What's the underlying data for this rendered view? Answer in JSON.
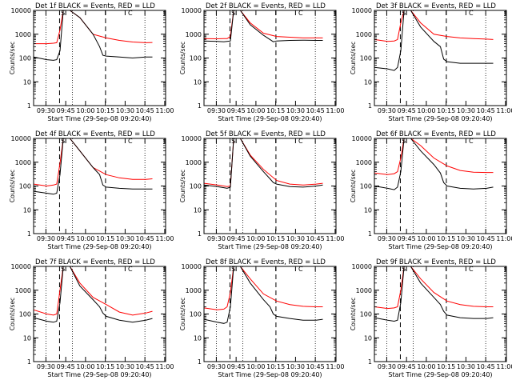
{
  "chart_data": [
    {
      "type": "line",
      "title": "Det 1f BLACK = Events, RED = LLD",
      "xlabel": "Start Time (29-Sep-08 09:20:40)",
      "ylabel": "Counts/sec",
      "xticks": [
        "09:30",
        "09:45",
        "10:00",
        "10:15",
        "10:30",
        "10:45",
        "11:00"
      ],
      "yticks": [
        "1",
        "10",
        "100",
        "1000",
        "10000"
      ],
      "xlim": [
        600,
        6000
      ],
      "ylim": [
        1,
        10000
      ],
      "log_y": true,
      "markers": [
        "S",
        "C"
      ],
      "series": [
        {
          "color": "#ff0000",
          "x": [
            600,
            1200,
            1500,
            1650,
            1800,
            1950,
            2250,
            2700,
            3300,
            3900,
            4500,
            5100,
            5700,
            6000
          ],
          "y": [
            400,
            400,
            420,
            440,
            1500,
            10000,
            10000,
            5000,
            1000,
            700,
            550,
            470,
            440,
            450
          ]
        },
        {
          "color": "#000000",
          "x": [
            600,
            1200,
            1500,
            1650,
            1800,
            1950,
            2250,
            2700,
            3300,
            3600,
            3750,
            3900,
            4500,
            5100,
            5700,
            6000
          ],
          "y": [
            110,
            85,
            80,
            85,
            200,
            10000,
            10000,
            5000,
            1000,
            300,
            130,
            120,
            110,
            100,
            110,
            110
          ]
        }
      ]
    },
    {
      "type": "line",
      "title": "Det 2f BLACK = Events, RED = LLD",
      "xlabel": "Start Time (29-Sep-08 09:20:40)",
      "ylabel": "Counts/sec",
      "xticks": [
        "09:30",
        "09:45",
        "10:00",
        "10:15",
        "10:30",
        "10:45",
        "11:00"
      ],
      "yticks": [
        "1",
        "10",
        "100",
        "1000",
        "10000"
      ],
      "xlim": [
        600,
        6000
      ],
      "ylim": [
        1,
        10000
      ],
      "log_y": true,
      "markers": [
        "S",
        "C"
      ],
      "series": [
        {
          "color": "#ff0000",
          "x": [
            600,
            1200,
            1500,
            1650,
            1800,
            1950,
            2250,
            2700,
            3300,
            3900,
            4500,
            5100,
            5700,
            6000
          ],
          "y": [
            650,
            640,
            650,
            650,
            800,
            10000,
            10000,
            3000,
            1100,
            800,
            750,
            700,
            700,
            700
          ]
        },
        {
          "color": "#000000",
          "x": [
            600,
            1200,
            1500,
            1650,
            1800,
            1950,
            2250,
            2700,
            3300,
            3600,
            3750,
            3900,
            4500,
            5100,
            5700,
            6000
          ],
          "y": [
            520,
            500,
            480,
            500,
            520,
            10000,
            10000,
            2500,
            900,
            600,
            480,
            520,
            550,
            560,
            550,
            550
          ]
        }
      ]
    },
    {
      "type": "line",
      "title": "Det 3f BLACK = Events, RED = LLD",
      "xlabel": "Start Time (29-Sep-08 09:20:40)",
      "ylabel": "Counts/sec",
      "xticks": [
        "09:30",
        "09:45",
        "10:00",
        "10:15",
        "10:30",
        "10:45",
        "11:00"
      ],
      "yticks": [
        "1",
        "10",
        "100",
        "1000",
        "10000"
      ],
      "xlim": [
        600,
        6000
      ],
      "ylim": [
        1,
        10000
      ],
      "log_y": true,
      "markers": [
        "S",
        "C"
      ],
      "series": [
        {
          "color": "#ff0000",
          "x": [
            600,
            1200,
            1500,
            1650,
            1800,
            1950,
            2250,
            2700,
            3300,
            3900,
            4500,
            5100,
            5700,
            6000
          ],
          "y": [
            600,
            500,
            520,
            600,
            3000,
            10000,
            10000,
            3000,
            1000,
            800,
            700,
            650,
            620,
            600
          ]
        },
        {
          "color": "#000000",
          "x": [
            600,
            1200,
            1500,
            1650,
            1800,
            1950,
            2250,
            2700,
            3300,
            3600,
            3750,
            3900,
            4500,
            5100,
            5700,
            6000
          ],
          "y": [
            40,
            35,
            30,
            40,
            200,
            10000,
            10000,
            2000,
            500,
            300,
            90,
            70,
            60,
            60,
            60,
            60
          ]
        }
      ]
    },
    {
      "type": "line",
      "title": "Det 4f BLACK = Events, RED = LLD",
      "xlabel": "Start Time (29-Sep-08 09:20:40)",
      "ylabel": "Counts/sec",
      "xticks": [
        "09:30",
        "09:45",
        "10:00",
        "10:15",
        "10:30",
        "10:45",
        "11:00"
      ],
      "yticks": [
        "1",
        "10",
        "100",
        "1000",
        "10000"
      ],
      "xlim": [
        600,
        6000
      ],
      "ylim": [
        1,
        10000
      ],
      "log_y": true,
      "markers": [
        "S",
        "C"
      ],
      "series": [
        {
          "color": "#ff0000",
          "x": [
            600,
            1200,
            1500,
            1650,
            1800,
            1950,
            2250,
            2700,
            3300,
            3900,
            4500,
            5100,
            5700,
            6000
          ],
          "y": [
            120,
            100,
            110,
            120,
            900,
            10000,
            10000,
            3000,
            600,
            300,
            220,
            190,
            190,
            200
          ]
        },
        {
          "color": "#000000",
          "x": [
            600,
            1200,
            1500,
            1650,
            1800,
            1950,
            2250,
            2700,
            3300,
            3600,
            3750,
            3900,
            4500,
            5100,
            5700,
            6000
          ],
          "y": [
            60,
            50,
            45,
            50,
            300,
            10000,
            10000,
            3000,
            600,
            300,
            110,
            90,
            80,
            75,
            75,
            75
          ]
        }
      ]
    },
    {
      "type": "line",
      "title": "Det 5f BLACK = Events, RED = LLD",
      "xlabel": "Start Time (29-Sep-08 09:20:40)",
      "ylabel": "Counts/sec",
      "xticks": [
        "09:30",
        "09:45",
        "10:00",
        "10:15",
        "10:30",
        "10:45",
        "11:00"
      ],
      "yticks": [
        "1",
        "10",
        "100",
        "1000",
        "10000"
      ],
      "xlim": [
        600,
        6000
      ],
      "ylim": [
        1,
        10000
      ],
      "log_y": true,
      "markers": [
        "S",
        "C"
      ],
      "series": [
        {
          "color": "#ff0000",
          "x": [
            600,
            1200,
            1500,
            1650,
            1800,
            1950,
            2250,
            2700,
            3300,
            3900,
            4500,
            5100,
            5700,
            6000
          ],
          "y": [
            130,
            110,
            100,
            95,
            100,
            10000,
            10000,
            2000,
            500,
            170,
            120,
            110,
            120,
            130
          ]
        },
        {
          "color": "#000000",
          "x": [
            600,
            1200,
            1500,
            1650,
            1800,
            1950,
            2250,
            2700,
            3300,
            3600,
            3750,
            3900,
            4500,
            5100,
            5700,
            6000
          ],
          "y": [
            110,
            95,
            85,
            80,
            90,
            10000,
            10000,
            1800,
            400,
            200,
            140,
            120,
            95,
            90,
            100,
            110
          ]
        }
      ]
    },
    {
      "type": "line",
      "title": "Det 6f BLACK = Events, RED = LLD",
      "xlabel": "Start Time (29-Sep-08 09:20:40)",
      "ylabel": "Counts/sec",
      "xticks": [
        "09:30",
        "09:45",
        "10:00",
        "10:15",
        "10:30",
        "10:45",
        "11:00"
      ],
      "yticks": [
        "1",
        "10",
        "100",
        "1000",
        "10000"
      ],
      "xlim": [
        600,
        6000
      ],
      "ylim": [
        1,
        10000
      ],
      "log_y": true,
      "markers": [
        "S",
        "C"
      ],
      "series": [
        {
          "color": "#ff0000",
          "x": [
            600,
            1200,
            1500,
            1650,
            1800,
            1950,
            2250,
            2700,
            3300,
            3900,
            4500,
            5100,
            5700,
            6000
          ],
          "y": [
            350,
            300,
            330,
            400,
            1500,
            10000,
            10000,
            5000,
            1500,
            700,
            450,
            380,
            370,
            370
          ]
        },
        {
          "color": "#000000",
          "x": [
            600,
            1200,
            1500,
            1650,
            1800,
            1950,
            2250,
            2700,
            3300,
            3600,
            3750,
            3900,
            4500,
            5100,
            5700,
            6000
          ],
          "y": [
            100,
            80,
            70,
            90,
            400,
            10000,
            10000,
            3000,
            800,
            350,
            140,
            100,
            80,
            75,
            80,
            90
          ]
        }
      ]
    },
    {
      "type": "line",
      "title": "Det 7f BLACK = Events, RED = LLD",
      "xlabel": "Start Time (29-Sep-08 09:20:40)",
      "ylabel": "Counts/sec",
      "xticks": [
        "09:30",
        "09:45",
        "10:00",
        "10:15",
        "10:30",
        "10:45",
        "11:00"
      ],
      "yticks": [
        "1",
        "10",
        "100",
        "1000",
        "10000"
      ],
      "xlim": [
        600,
        6000
      ],
      "ylim": [
        1,
        10000
      ],
      "log_y": true,
      "markers": [
        "S",
        "C"
      ],
      "series": [
        {
          "color": "#ff0000",
          "x": [
            600,
            1200,
            1500,
            1650,
            1800,
            1950,
            2250,
            2700,
            3300,
            3900,
            4500,
            5100,
            5700,
            6000
          ],
          "y": [
            150,
            100,
            90,
            100,
            1000,
            10000,
            10000,
            2000,
            500,
            250,
            120,
            90,
            110,
            130
          ]
        },
        {
          "color": "#000000",
          "x": [
            600,
            1200,
            1500,
            1650,
            1800,
            1950,
            2250,
            2700,
            3300,
            3600,
            3750,
            3900,
            4500,
            5100,
            5700,
            6000
          ],
          "y": [
            70,
            50,
            45,
            50,
            300,
            10000,
            10000,
            1500,
            400,
            200,
            110,
            80,
            55,
            45,
            55,
            65
          ]
        }
      ]
    },
    {
      "type": "line",
      "title": "Det 8f BLACK = Events, RED = LLD",
      "xlabel": "Start Time (29-Sep-08 09:20:40)",
      "ylabel": "Counts/sec",
      "xticks": [
        "09:30",
        "09:45",
        "10:00",
        "10:15",
        "10:30",
        "10:45",
        "11:00"
      ],
      "yticks": [
        "1",
        "10",
        "100",
        "1000",
        "10000"
      ],
      "xlim": [
        600,
        6000
      ],
      "ylim": [
        1,
        10000
      ],
      "log_y": true,
      "markers": [
        "S",
        "C"
      ],
      "series": [
        {
          "color": "#ff0000",
          "x": [
            600,
            1200,
            1500,
            1650,
            1800,
            1950,
            2250,
            2700,
            3300,
            3900,
            4500,
            5100,
            5700,
            6000
          ],
          "y": [
            180,
            150,
            160,
            200,
            800,
            10000,
            10000,
            3000,
            700,
            350,
            250,
            210,
            200,
            200
          ]
        },
        {
          "color": "#000000",
          "x": [
            600,
            1200,
            1500,
            1650,
            1800,
            1950,
            2250,
            2700,
            3300,
            3600,
            3750,
            3900,
            4500,
            5100,
            5700,
            6000
          ],
          "y": [
            60,
            45,
            40,
            45,
            200,
            10000,
            10000,
            2000,
            400,
            200,
            100,
            80,
            65,
            55,
            55,
            60
          ]
        }
      ]
    },
    {
      "type": "line",
      "title": "Det 9f BLACK = Events, RED = LLD",
      "xlabel": "Start Time (29-Sep-08 09:20:40)",
      "ylabel": "Counts/sec",
      "xticks": [
        "09:30",
        "09:45",
        "10:00",
        "10:15",
        "10:30",
        "10:45",
        "11:00"
      ],
      "yticks": [
        "1",
        "10",
        "100",
        "1000",
        "10000"
      ],
      "xlim": [
        600,
        6000
      ],
      "ylim": [
        1,
        10000
      ],
      "log_y": true,
      "markers": [
        "S",
        "C"
      ],
      "series": [
        {
          "color": "#ff0000",
          "x": [
            600,
            1200,
            1500,
            1650,
            1800,
            1950,
            2250,
            2700,
            3300,
            3900,
            4500,
            5100,
            5700,
            6000
          ],
          "y": [
            200,
            170,
            180,
            200,
            1000,
            10000,
            10000,
            3000,
            800,
            350,
            250,
            210,
            200,
            200
          ]
        },
        {
          "color": "#000000",
          "x": [
            600,
            1200,
            1500,
            1650,
            1800,
            1950,
            2250,
            2700,
            3300,
            3600,
            3750,
            3900,
            4500,
            5100,
            5700,
            6000
          ],
          "y": [
            70,
            55,
            50,
            55,
            300,
            10000,
            10000,
            2000,
            500,
            250,
            130,
            90,
            70,
            65,
            65,
            70
          ]
        }
      ]
    }
  ]
}
